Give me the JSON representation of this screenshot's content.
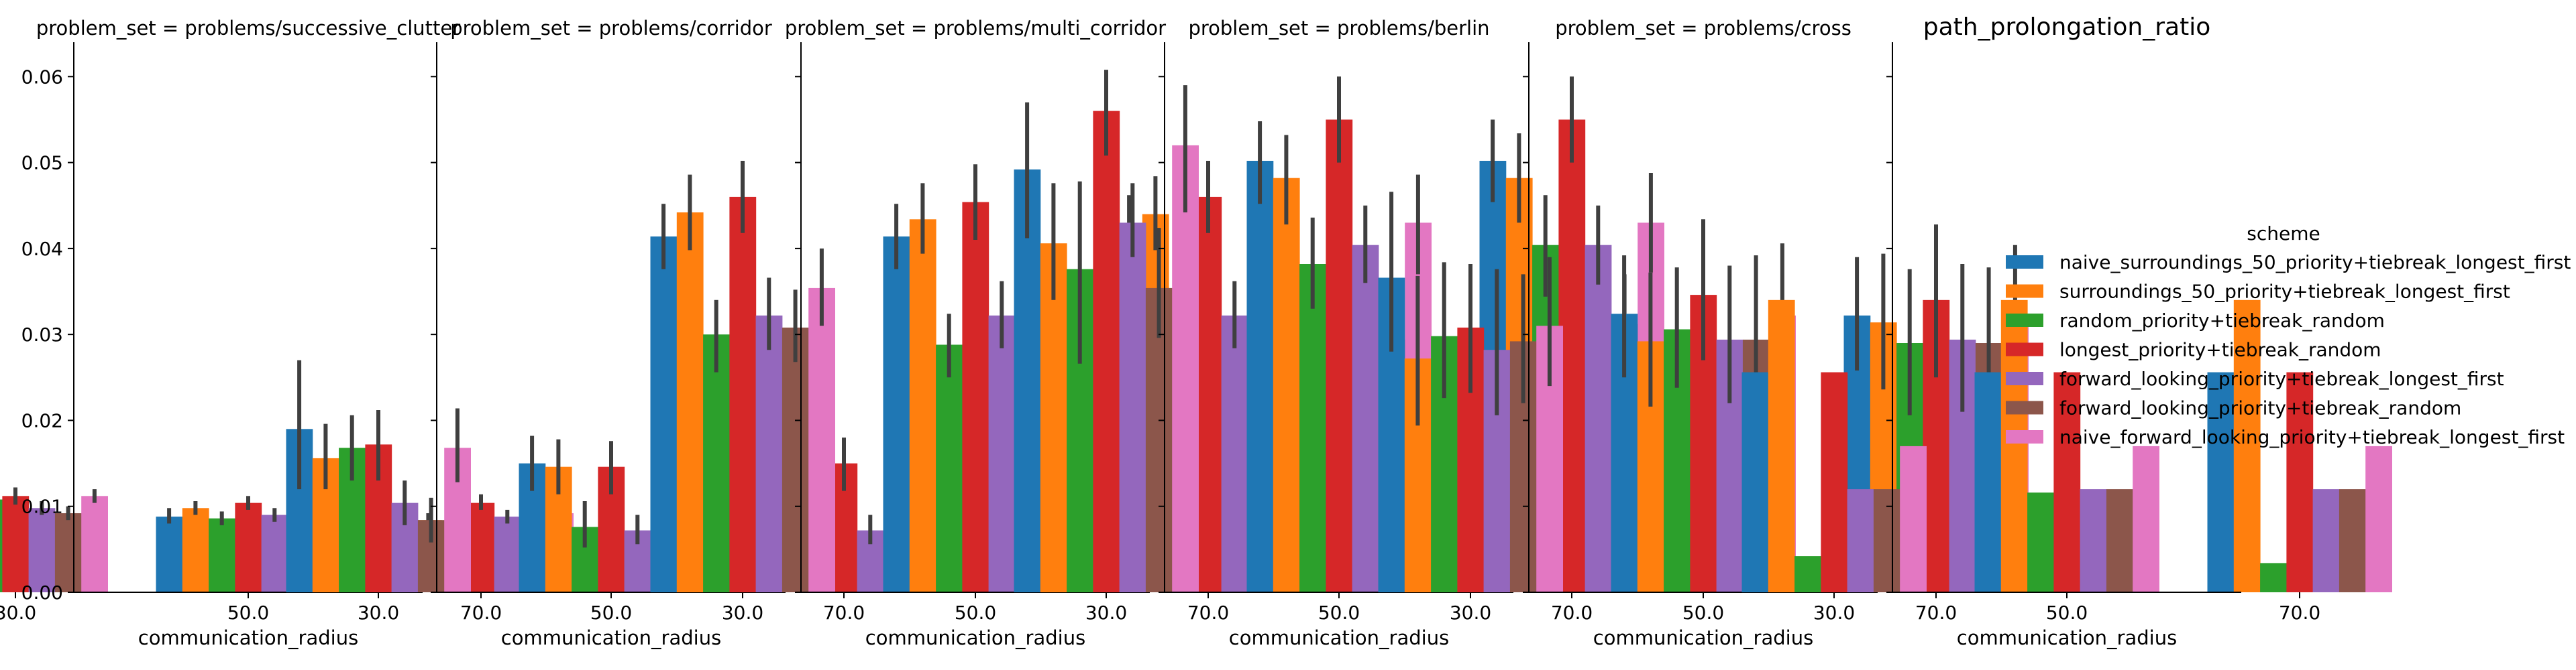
{
  "chart_data": {
    "type": "bar",
    "x_label": "communication_radius",
    "y_ticks": [
      "0.00",
      "0.01",
      "0.02",
      "0.03",
      "0.04",
      "0.05",
      "0.06"
    ],
    "ylim": [
      0,
      0.064
    ],
    "categories": [
      "30.0",
      "50.0",
      "70.0"
    ],
    "legend": {
      "title": "scheme",
      "placement": "right",
      "entries": [
        {
          "name": "naive_surroundings_50_priority+tiebreak_longest_first",
          "color": "#1f77b4"
        },
        {
          "name": "surroundings_50_priority+tiebreak_longest_first",
          "color": "#ff7f0e"
        },
        {
          "name": "random_priority+tiebreak_random",
          "color": "#2ca02c"
        },
        {
          "name": "longest_priority+tiebreak_random",
          "color": "#d62728"
        },
        {
          "name": "forward_looking_priority+tiebreak_longest_first",
          "color": "#9467bd"
        },
        {
          "name": "forward_looking_priority+tiebreak_random",
          "color": "#8c564b"
        },
        {
          "name": "naive_forward_looking_priority+tiebreak_longest_first",
          "color": "#e377c2"
        }
      ]
    },
    "panels": [
      {
        "title": "problem_set = problems/successive_clutter",
        "values": [
          [
            0.0098,
            0.0092,
            0.0108,
            0.0112,
            0.0098,
            0.0092,
            0.0112
          ],
          [
            0.0088,
            0.0098,
            0.0086,
            0.0104,
            0.009,
            0.0086,
            0.0096
          ],
          [
            0.0088,
            0.0084,
            0.0076,
            0.0104,
            0.0088,
            0.0086,
            0.0092
          ]
        ],
        "errors": [
          [
            [
              0.009,
              0.0108
            ],
            [
              0.0086,
              0.01
            ],
            [
              0.0098,
              0.0118
            ],
            [
              0.0102,
              0.0122
            ],
            [
              0.009,
              0.0106
            ],
            [
              0.0084,
              0.01
            ],
            [
              0.0104,
              0.012
            ]
          ],
          [
            [
              0.008,
              0.0098
            ],
            [
              0.009,
              0.0106
            ],
            [
              0.0078,
              0.0094
            ],
            [
              0.0096,
              0.0112
            ],
            [
              0.0082,
              0.0098
            ],
            [
              0.0078,
              0.0094
            ],
            [
              0.0088,
              0.0104
            ]
          ],
          [
            [
              0.008,
              0.0096
            ],
            [
              0.0076,
              0.0092
            ],
            [
              0.007,
              0.0084
            ],
            [
              0.0096,
              0.0114
            ],
            [
              0.008,
              0.0096
            ],
            [
              0.0078,
              0.0094
            ],
            [
              0.0084,
              0.01
            ]
          ]
        ]
      },
      {
        "title": "problem_set = problems/corridor",
        "values": [
          [
            0.019,
            0.0156,
            0.0168,
            0.0172,
            0.0104,
            0.0084,
            0.0168
          ],
          [
            0.015,
            0.0146,
            0.0076,
            0.0146,
            0.0072,
            0.0064,
            0.0126
          ],
          [
            0.0144,
            0.0144,
            0.0096,
            0.015,
            0.0072,
            0.0056,
            0.0128
          ]
        ],
        "errors": [
          [
            [
              0.012,
              0.027
            ],
            [
              0.012,
              0.0196
            ],
            [
              0.013,
              0.0206
            ],
            [
              0.013,
              0.0212
            ],
            [
              0.0078,
              0.013
            ],
            [
              0.0058,
              0.011
            ],
            [
              0.0128,
              0.0214
            ]
          ],
          [
            [
              0.0118,
              0.0182
            ],
            [
              0.0114,
              0.0178
            ],
            [
              0.0052,
              0.0106
            ],
            [
              0.0114,
              0.0176
            ],
            [
              0.0056,
              0.009
            ],
            [
              0.0046,
              0.0084
            ],
            [
              0.0096,
              0.0162
            ]
          ],
          [
            [
              0.0112,
              0.0176
            ],
            [
              0.0112,
              0.0176
            ],
            [
              0.0066,
              0.0128
            ],
            [
              0.0118,
              0.018
            ],
            [
              0.0056,
              0.009
            ],
            [
              0.004,
              0.0072
            ],
            [
              0.0098,
              0.0162
            ]
          ]
        ]
      },
      {
        "title": "problem_set = problems/multi_corridor",
        "values": [
          [
            0.0414,
            0.0442,
            0.03,
            0.046,
            0.0322,
            0.0308,
            0.0354
          ],
          [
            0.0414,
            0.0434,
            0.0288,
            0.0454,
            0.0322,
            0.0296,
            0.0352
          ],
          [
            0.042,
            0.044,
            0.0322,
            0.046,
            0.0322,
            0.0308,
            0.0354
          ]
        ],
        "errors": [
          [
            [
              0.0376,
              0.0452
            ],
            [
              0.0398,
              0.0486
            ],
            [
              0.0256,
              0.034
            ],
            [
              0.0418,
              0.0502
            ],
            [
              0.0282,
              0.0366
            ],
            [
              0.0268,
              0.0352
            ],
            [
              0.031,
              0.04
            ]
          ],
          [
            [
              0.0376,
              0.0452
            ],
            [
              0.0394,
              0.0476
            ],
            [
              0.025,
              0.0324
            ],
            [
              0.041,
              0.0498
            ],
            [
              0.0284,
              0.0362
            ],
            [
              0.0256,
              0.034
            ],
            [
              0.0308,
              0.0398
            ]
          ],
          [
            [
              0.038,
              0.0462
            ],
            [
              0.0398,
              0.0484
            ],
            [
              0.0282,
              0.0362
            ],
            [
              0.0418,
              0.0502
            ],
            [
              0.0284,
              0.0362
            ],
            [
              0.0268,
              0.0352
            ],
            [
              0.031,
              0.04
            ]
          ]
        ]
      },
      {
        "title": "problem_set = problems/berlin",
        "values": [
          [
            0.0492,
            0.0406,
            0.0376,
            0.056,
            0.043,
            0.0354,
            0.052
          ],
          [
            0.0502,
            0.0482,
            0.0382,
            0.055,
            0.0404,
            0.0294,
            0.043
          ],
          [
            0.0502,
            0.0482,
            0.0404,
            0.055,
            0.0404,
            0.0312,
            0.043
          ]
        ],
        "errors": [
          [
            [
              0.0412,
              0.057
            ],
            [
              0.034,
              0.0476
            ],
            [
              0.0266,
              0.0478
            ],
            [
              0.0508,
              0.0608
            ],
            [
              0.039,
              0.0476
            ],
            [
              0.0296,
              0.0424
            ],
            [
              0.0442,
              0.059
            ]
          ],
          [
            [
              0.0452,
              0.0548
            ],
            [
              0.0428,
              0.0532
            ],
            [
              0.033,
              0.0436
            ],
            [
              0.05,
              0.06
            ],
            [
              0.036,
              0.045
            ],
            [
              0.0244,
              0.035
            ],
            [
              0.037,
              0.0486
            ]
          ],
          [
            [
              0.0454,
              0.055
            ],
            [
              0.043,
              0.0534
            ],
            [
              0.0344,
              0.0462
            ],
            [
              0.05,
              0.06
            ],
            [
              0.0358,
              0.045
            ],
            [
              0.025,
              0.037
            ],
            [
              0.0372,
              0.0488
            ]
          ]
        ]
      },
      {
        "title": "problem_set = problems/cross",
        "values": [
          [
            0.0366,
            0.0272,
            0.0298,
            0.0308,
            0.0282,
            0.0292,
            0.031
          ],
          [
            0.0324,
            0.0292,
            0.0306,
            0.0346,
            0.0294,
            0.0294,
            0.0322
          ],
          [
            0.0322,
            0.0314,
            0.029,
            0.034,
            0.0294,
            0.029,
            0.0324
          ]
        ],
        "errors": [
          [
            [
              0.028,
              0.0466
            ],
            [
              0.0194,
              0.0368
            ],
            [
              0.0226,
              0.0384
            ],
            [
              0.0232,
              0.0382
            ],
            [
              0.0206,
              0.0376
            ],
            [
              0.022,
              0.037
            ],
            [
              0.024,
              0.039
            ]
          ],
          [
            [
              0.025,
              0.0392
            ],
            [
              0.0216,
              0.0372
            ],
            [
              0.0238,
              0.0378
            ],
            [
              0.027,
              0.0434
            ],
            [
              0.022,
              0.038
            ],
            [
              0.0216,
              0.0392
            ],
            [
              0.0236,
              0.0406
            ]
          ],
          [
            [
              0.0258,
              0.039
            ],
            [
              0.0236,
              0.0394
            ],
            [
              0.0206,
              0.0376
            ],
            [
              0.025,
              0.0428
            ],
            [
              0.021,
              0.0382
            ],
            [
              0.0204,
              0.0378
            ],
            [
              0.0244,
              0.0404
            ]
          ]
        ]
      },
      {
        "title": "path_prolongation_ratio",
        "values": [
          [
            0.0256,
            0.034,
            0.0042,
            0.0256,
            0.012,
            0.012,
            0.017
          ],
          [
            0.0256,
            0.034,
            0.0116,
            0.0256,
            0.012,
            0.012,
            0.017
          ],
          [
            0.0256,
            0.034,
            0.0034,
            0.0256,
            0.012,
            0.012,
            0.017
          ]
        ],
        "errors": null
      }
    ]
  }
}
